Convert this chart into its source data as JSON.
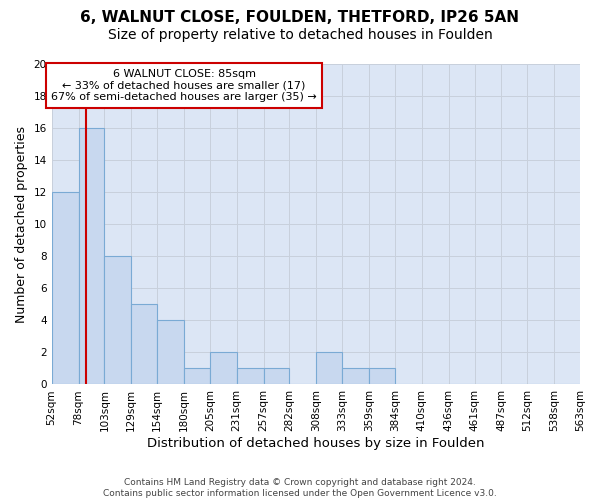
{
  "title": "6, WALNUT CLOSE, FOULDEN, THETFORD, IP26 5AN",
  "subtitle": "Size of property relative to detached houses in Foulden",
  "xlabel": "Distribution of detached houses by size in Foulden",
  "ylabel": "Number of detached properties",
  "bin_labels": [
    "52sqm",
    "78sqm",
    "103sqm",
    "129sqm",
    "154sqm",
    "180sqm",
    "205sqm",
    "231sqm",
    "257sqm",
    "282sqm",
    "308sqm",
    "333sqm",
    "359sqm",
    "384sqm",
    "410sqm",
    "436sqm",
    "461sqm",
    "487sqm",
    "512sqm",
    "538sqm",
    "563sqm"
  ],
  "bin_edges": [
    52,
    78,
    103,
    129,
    154,
    180,
    205,
    231,
    257,
    282,
    308,
    333,
    359,
    384,
    410,
    436,
    461,
    487,
    512,
    538,
    563
  ],
  "counts": [
    12,
    16,
    8,
    5,
    4,
    1,
    2,
    1,
    1,
    0,
    2,
    1,
    1,
    0,
    0,
    0,
    0,
    0,
    0,
    0,
    0
  ],
  "bar_facecolor": "#c8d8ef",
  "bar_edgecolor": "#7aaad4",
  "property_line_x": 85,
  "property_line_color": "#cc0000",
  "annotation_line1": "6 WALNUT CLOSE: 85sqm",
  "annotation_line2": "← 33% of detached houses are smaller (17)",
  "annotation_line3": "67% of semi-detached houses are larger (35) →",
  "annotation_box_edgecolor": "#cc0000",
  "annotation_fontsize": 8.0,
  "ylim": [
    0,
    20
  ],
  "yticks": [
    0,
    2,
    4,
    6,
    8,
    10,
    12,
    14,
    16,
    18,
    20
  ],
  "grid_color": "#c8d0dc",
  "background_color": "#ffffff",
  "plot_bg_color": "#dce6f5",
  "footer": "Contains HM Land Registry data © Crown copyright and database right 2024.\nContains public sector information licensed under the Open Government Licence v3.0.",
  "title_fontsize": 11,
  "subtitle_fontsize": 10,
  "xlabel_fontsize": 9.5,
  "ylabel_fontsize": 9,
  "tick_fontsize": 7.5,
  "footer_fontsize": 6.5
}
